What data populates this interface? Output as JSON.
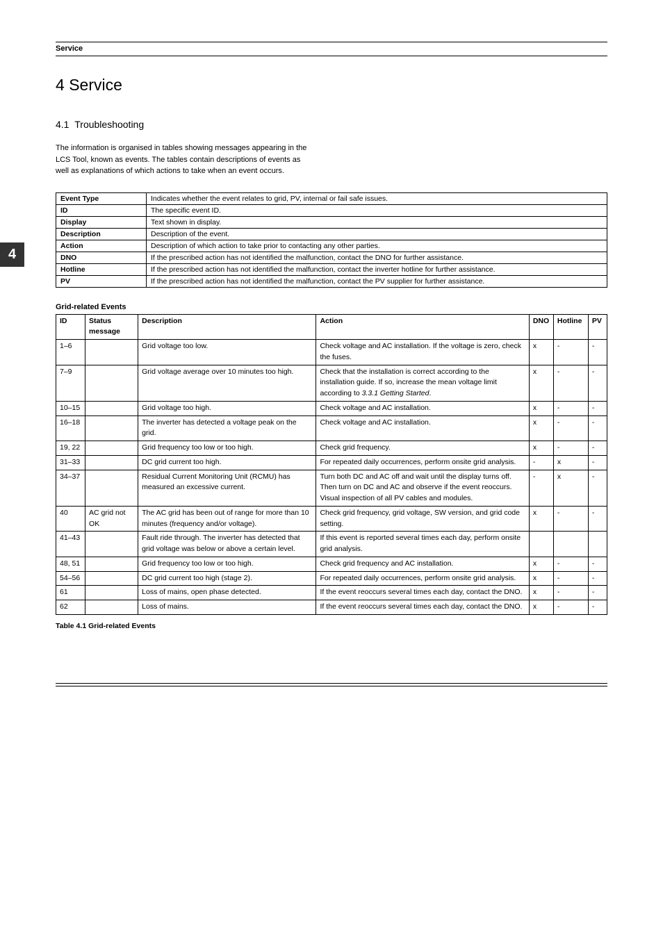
{
  "side_tab_number": "4",
  "header": {
    "section": "Service"
  },
  "chapter": {
    "number": "4",
    "title": "Service"
  },
  "section": {
    "number": "4.1",
    "title": "Troubleshooting"
  },
  "intro": "The information is organised in tables showing messages appearing in the LCS Tool, known as events. The tables contain descriptions of events as well as explanations of which actions to take when an event occurs.",
  "legend_rows": [
    {
      "label": "Event Type",
      "desc": "Indicates whether the event relates to grid, PV, internal or fail safe issues."
    },
    {
      "label": "ID",
      "desc": "The specific event ID."
    },
    {
      "label": "Display",
      "desc": "Text shown in display."
    },
    {
      "label": "Description",
      "desc": "Description of the event."
    },
    {
      "label": "Action",
      "desc": "Description of which action to take prior to contacting any other parties."
    },
    {
      "label": "DNO",
      "desc": "If the prescribed action has not identified the malfunction, contact the DNO for further assistance."
    },
    {
      "label": "Hotline",
      "desc": "If the prescribed action has not identified the malfunction, contact the inverter hotline for further assistance."
    },
    {
      "label": "PV",
      "desc": "If the prescribed action has not identified the malfunction, contact the PV supplier for further assistance."
    }
  ],
  "events_table": {
    "title": "Grid-related Events",
    "headers": {
      "id": "ID",
      "status": "Status message",
      "description": "Description",
      "action": "Action",
      "dno": "DNO",
      "hotline": "Hotline",
      "pv": "PV"
    },
    "rows": [
      {
        "id": "1–6",
        "status": "",
        "desc": "Grid voltage too low.",
        "action": "Check voltage and AC installation. If the voltage is zero, check the fuses.",
        "dno": "x",
        "hotline": "-",
        "pv": "-"
      },
      {
        "id": "7–9",
        "status": "",
        "desc": "Grid voltage average over 10 minutes too high.",
        "action_pre": "Check that the installation is correct according to the installation guide. If so, increase the mean voltage limit according to ",
        "action_italic": "3.3.1 Getting Started",
        "action_post": ".",
        "dno": "x",
        "hotline": "-",
        "pv": "-"
      },
      {
        "id": "10–15",
        "status": "",
        "desc": "Grid voltage too high.",
        "action": "Check voltage and AC installation.",
        "dno": "x",
        "hotline": "-",
        "pv": "-"
      },
      {
        "id": "16–18",
        "status": "",
        "desc": "The inverter has detected a voltage peak on the grid.",
        "action": "Check voltage and AC installation.",
        "dno": "x",
        "hotline": "-",
        "pv": "-"
      },
      {
        "id": "19, 22",
        "status": "",
        "desc": "Grid frequency too low or too high.",
        "action": "Check grid frequency.",
        "dno": "x",
        "hotline": "-",
        "pv": "-"
      },
      {
        "id": "31–33",
        "status": "",
        "desc": "DC grid current too high.",
        "action": "For repeated daily occurrences, perform onsite grid analysis.",
        "dno": "-",
        "hotline": "x",
        "pv": "-"
      },
      {
        "id": "34–37",
        "status": "",
        "desc": "Residual Current Monitoring Unit (RCMU) has measured an excessive current.",
        "action": "Turn both DC and AC off and wait until the display turns off. Then turn on DC and AC and observe if the event reoccurs.\nVisual inspection of all PV cables and modules.",
        "dno": "-",
        "hotline": "x",
        "pv": "-"
      },
      {
        "id": "40",
        "status": "AC grid not OK",
        "desc": "The AC grid has been out of range for more than 10 minutes (frequency and/or voltage).",
        "action": "Check grid frequency, grid voltage, SW version, and grid code setting.",
        "dno": "x",
        "hotline": "-",
        "pv": "-"
      },
      {
        "id": "41–43",
        "status": "",
        "desc": "Fault ride through. The inverter has detected that grid voltage was below or above a certain level.",
        "action": "If this event is reported several times each day, perform onsite grid analysis.",
        "dno": "",
        "hotline": "",
        "pv": ""
      },
      {
        "id": "48, 51",
        "status": "",
        "desc": "Grid frequency too low or too high.",
        "action": "Check grid frequency and AC installation.",
        "dno": "x",
        "hotline": "-",
        "pv": "-"
      },
      {
        "id": "54–56",
        "status": "",
        "desc": "DC grid current too high (stage 2).",
        "action": "For repeated daily occurrences, perform onsite grid analysis.",
        "dno": "x",
        "hotline": "-",
        "pv": "-"
      },
      {
        "id": "61",
        "status": "",
        "desc": "Loss of mains, open phase detected.",
        "action": "If the event reoccurs several times each day, contact the DNO.",
        "dno": "x",
        "hotline": "-",
        "pv": "-"
      },
      {
        "id": "62",
        "status": "",
        "desc": "Loss of mains.",
        "action": "If the event reoccurs several times each day, contact the DNO.",
        "dno": "x",
        "hotline": "-",
        "pv": "-"
      }
    ],
    "caption": "Table 4.1 Grid-related Events"
  }
}
